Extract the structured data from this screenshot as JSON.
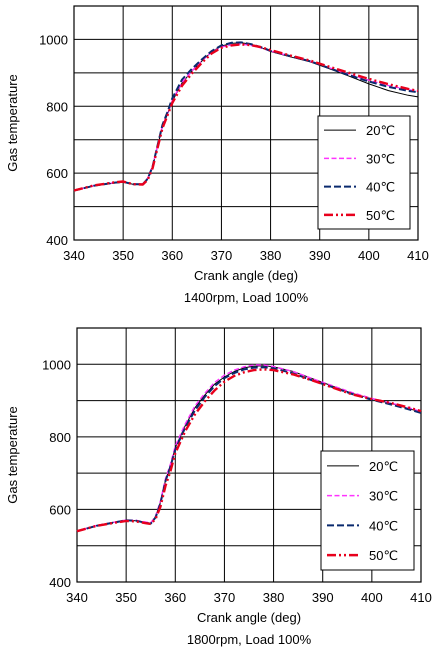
{
  "colors": {
    "grid": "#000000",
    "series": [
      "#000000",
      "#ff33ff",
      "#0a2a6e",
      "#e8001c"
    ]
  },
  "chart_data": [
    {
      "type": "line",
      "xlabel": "Crank angle (deg)",
      "ylabel": "Gas temperature",
      "caption": "1400rpm, Load 100%",
      "xlim": [
        340,
        410
      ],
      "ylim": [
        400,
        1100
      ],
      "xticks": [
        340,
        350,
        360,
        370,
        380,
        390,
        400,
        410
      ],
      "yticks": [
        400,
        600,
        800,
        1000
      ],
      "xtick_labels": [
        "340",
        "350",
        "360",
        "370",
        "380",
        "390",
        "400",
        "410"
      ],
      "ytick_labels": [
        "400",
        "600",
        "800",
        "1000"
      ],
      "legend_position": "right",
      "series": [
        {
          "name": "20℃",
          "style": "solid",
          "x": [
            340,
            344,
            348,
            350,
            352,
            354,
            355,
            356,
            357,
            358,
            359,
            360,
            362,
            364,
            366,
            368,
            370,
            372,
            374,
            376,
            378,
            380,
            384,
            388,
            392,
            396,
            400,
            404,
            408,
            410
          ],
          "y": [
            548,
            562,
            570,
            573,
            567,
            568,
            584,
            620,
            680,
            740,
            775,
            815,
            870,
            905,
            935,
            963,
            980,
            988,
            990,
            986,
            976,
            964,
            948,
            933,
            912,
            890,
            867,
            847,
            833,
            828
          ]
        },
        {
          "name": "30℃",
          "style": "dash",
          "x": [
            340,
            344,
            348,
            350,
            352,
            354,
            355,
            356,
            357,
            358,
            359,
            360,
            362,
            364,
            366,
            368,
            370,
            372,
            374,
            376,
            378,
            380,
            384,
            388,
            392,
            396,
            400,
            404,
            408,
            410
          ],
          "y": [
            548,
            562,
            571,
            574,
            567,
            568,
            585,
            622,
            682,
            742,
            777,
            818,
            872,
            906,
            936,
            962,
            977,
            984,
            986,
            982,
            975,
            965,
            950,
            935,
            915,
            895,
            878,
            862,
            850,
            845
          ]
        },
        {
          "name": "40℃",
          "style": "longdash",
          "x": [
            340,
            344,
            348,
            350,
            352,
            354,
            355,
            356,
            357,
            358,
            359,
            360,
            362,
            364,
            366,
            368,
            370,
            372,
            374,
            376,
            378,
            380,
            384,
            388,
            392,
            396,
            400,
            404,
            408,
            410
          ],
          "y": [
            548,
            562,
            571,
            574,
            567,
            567,
            583,
            620,
            682,
            745,
            782,
            824,
            880,
            912,
            940,
            965,
            982,
            990,
            991,
            986,
            977,
            966,
            950,
            935,
            914,
            893,
            874,
            858,
            846,
            842
          ]
        },
        {
          "name": "50℃",
          "style": "dashdotdot",
          "x": [
            340,
            344,
            348,
            350,
            352,
            354,
            355,
            356,
            357,
            358,
            359,
            360,
            362,
            364,
            366,
            368,
            370,
            372,
            374,
            376,
            378,
            380,
            384,
            388,
            392,
            396,
            400,
            404,
            408,
            410
          ],
          "y": [
            548,
            563,
            572,
            575,
            567,
            566,
            580,
            615,
            675,
            735,
            772,
            810,
            862,
            898,
            930,
            958,
            975,
            982,
            985,
            983,
            977,
            968,
            952,
            937,
            918,
            900,
            882,
            866,
            852,
            846
          ]
        }
      ]
    },
    {
      "type": "line",
      "xlabel": "Crank angle (deg)",
      "ylabel": "Gas temperature",
      "caption": "1800rpm, Load 100%",
      "xlim": [
        340,
        410
      ],
      "ylim": [
        400,
        1100
      ],
      "xticks": [
        340,
        350,
        360,
        370,
        380,
        390,
        400,
        410
      ],
      "yticks": [
        400,
        600,
        800,
        1000
      ],
      "xtick_labels": [
        "340",
        "350",
        "360",
        "370",
        "380",
        "390",
        "400",
        "410"
      ],
      "ytick_labels": [
        "400",
        "600",
        "800",
        "1000"
      ],
      "legend_position": "right",
      "series": [
        {
          "name": "20℃",
          "style": "solid",
          "x": [
            340,
            344,
            348,
            350,
            352,
            354,
            355,
            356,
            357,
            358,
            359,
            360,
            362,
            364,
            366,
            368,
            370,
            372,
            374,
            376,
            378,
            380,
            384,
            388,
            392,
            396,
            400,
            404,
            408,
            410
          ],
          "y": [
            540,
            556,
            566,
            570,
            569,
            564,
            562,
            580,
            620,
            680,
            720,
            770,
            830,
            880,
            915,
            945,
            965,
            980,
            990,
            995,
            996,
            993,
            980,
            960,
            940,
            920,
            905,
            892,
            876,
            868
          ]
        },
        {
          "name": "30℃",
          "style": "dash",
          "x": [
            340,
            344,
            348,
            350,
            352,
            354,
            355,
            356,
            357,
            358,
            359,
            360,
            362,
            364,
            366,
            368,
            370,
            372,
            374,
            376,
            378,
            380,
            384,
            388,
            392,
            396,
            400,
            404,
            408,
            410
          ],
          "y": [
            540,
            556,
            566,
            571,
            570,
            565,
            563,
            582,
            624,
            685,
            725,
            775,
            835,
            885,
            920,
            950,
            970,
            984,
            993,
            998,
            998,
            994,
            980,
            960,
            941,
            922,
            906,
            893,
            878,
            870
          ]
        },
        {
          "name": "40℃",
          "style": "longdash",
          "x": [
            340,
            344,
            348,
            350,
            352,
            354,
            355,
            356,
            357,
            358,
            359,
            360,
            362,
            364,
            366,
            368,
            370,
            372,
            374,
            376,
            378,
            380,
            384,
            388,
            392,
            396,
            400,
            404,
            408,
            410
          ],
          "y": [
            540,
            555,
            565,
            570,
            569,
            563,
            561,
            578,
            618,
            678,
            718,
            765,
            825,
            873,
            910,
            940,
            962,
            976,
            986,
            991,
            992,
            989,
            975,
            955,
            937,
            918,
            902,
            889,
            874,
            866
          ]
        },
        {
          "name": "50℃",
          "style": "dashdotdot",
          "x": [
            340,
            344,
            348,
            350,
            352,
            354,
            355,
            356,
            357,
            358,
            359,
            360,
            362,
            364,
            366,
            368,
            370,
            372,
            374,
            376,
            378,
            380,
            384,
            388,
            392,
            396,
            400,
            404,
            408,
            410
          ],
          "y": [
            540,
            555,
            564,
            568,
            567,
            562,
            560,
            574,
            608,
            665,
            705,
            755,
            815,
            862,
            898,
            928,
            952,
            968,
            978,
            984,
            986,
            984,
            972,
            955,
            936,
            917,
            904,
            893,
            879,
            871
          ]
        }
      ]
    }
  ]
}
